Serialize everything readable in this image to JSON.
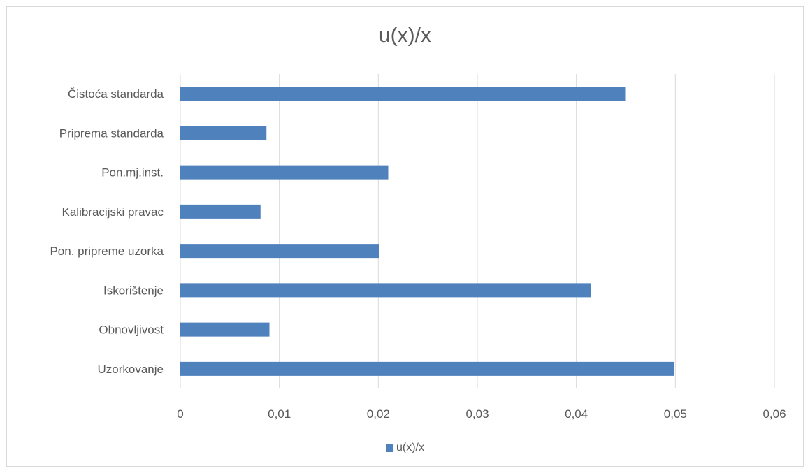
{
  "chart_data": {
    "type": "bar",
    "orientation": "horizontal",
    "title": "u(x)/x",
    "categories": [
      "Čistoća standarda",
      "Priprema standarda",
      "Pon.mj.inst.",
      "Kalibracijski pravac",
      "Pon. pripreme uzorka",
      "Iskorištenje",
      "Obnovljivost",
      "Uzorkovanje"
    ],
    "series": [
      {
        "name": "u(x)/x",
        "values": [
          0.045,
          0.0087,
          0.021,
          0.0081,
          0.0201,
          0.0415,
          0.009,
          0.0499
        ]
      }
    ],
    "xlim": [
      0,
      0.06
    ],
    "x_ticks": [
      "0",
      "0,01",
      "0,02",
      "0,03",
      "0,04",
      "0,05",
      "0,06"
    ],
    "grid": true,
    "legend_position": "bottom",
    "bar_color": "#4f81bd"
  }
}
